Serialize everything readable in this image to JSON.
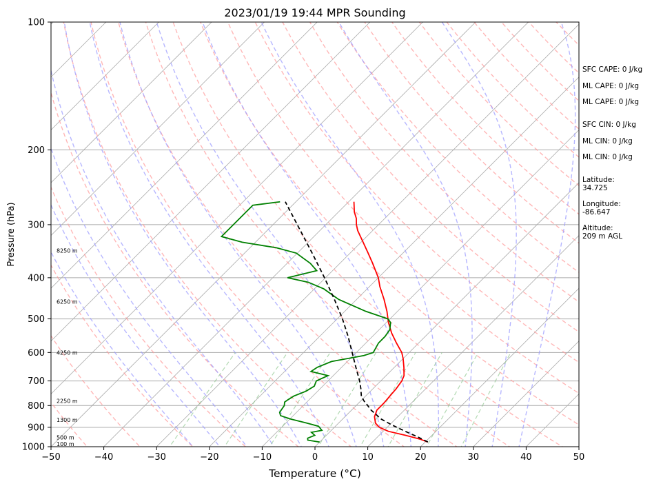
{
  "chart_data": {
    "type": "line",
    "title": "2023/01/19 19:44 MPR Sounding",
    "xlabel": "Temperature (°C)",
    "ylabel": "Pressure (hPa)",
    "xlim": [
      -50,
      50
    ],
    "ylim": [
      1000,
      100
    ],
    "y_scale": "log",
    "skew": "skew-T log-P",
    "grid": true,
    "x_ticks": [
      "−50",
      "−40",
      "−30",
      "−20",
      "−10",
      "0",
      "10",
      "20",
      "30",
      "40",
      "50"
    ],
    "x_tick_values": [
      -50,
      -40,
      -30,
      -20,
      -10,
      0,
      10,
      20,
      30,
      40,
      50
    ],
    "y_ticks": [
      "1000",
      "900",
      "800",
      "700",
      "600",
      "500",
      "400",
      "300",
      "200",
      "100"
    ],
    "y_tick_values": [
      1000,
      900,
      800,
      700,
      600,
      500,
      400,
      300,
      200,
      100
    ],
    "series": [
      {
        "role": "temperature",
        "color": "#ff0000",
        "points": [
          [
            975,
            20.5
          ],
          [
            960,
            18.5
          ],
          [
            940,
            15.0
          ],
          [
            920,
            11.0
          ],
          [
            900,
            8.5
          ],
          [
            880,
            7.0
          ],
          [
            850,
            5.6
          ],
          [
            820,
            4.8
          ],
          [
            790,
            4.8
          ],
          [
            760,
            4.6
          ],
          [
            730,
            4.4
          ],
          [
            700,
            4.0
          ],
          [
            680,
            3.4
          ],
          [
            650,
            1.8
          ],
          [
            620,
            0.0
          ],
          [
            600,
            -1.4
          ],
          [
            570,
            -4.2
          ],
          [
            540,
            -7.0
          ],
          [
            510,
            -9.6
          ],
          [
            480,
            -12.0
          ],
          [
            450,
            -14.8
          ],
          [
            420,
            -18.0
          ],
          [
            400,
            -20.0
          ],
          [
            370,
            -23.8
          ],
          [
            350,
            -26.6
          ],
          [
            330,
            -29.6
          ],
          [
            310,
            -32.8
          ],
          [
            300,
            -34.2
          ],
          [
            290,
            -35.4
          ],
          [
            280,
            -37.0
          ],
          [
            265,
            -39.0
          ]
        ]
      },
      {
        "role": "dewpoint",
        "color": "#008000",
        "points": [
          [
            975,
            0.0
          ],
          [
            965,
            -2.6
          ],
          [
            955,
            -3.0
          ],
          [
            940,
            -2.2
          ],
          [
            925,
            -3.4
          ],
          [
            915,
            -1.8
          ],
          [
            895,
            -3.2
          ],
          [
            880,
            -6.0
          ],
          [
            860,
            -10.0
          ],
          [
            845,
            -12.4
          ],
          [
            830,
            -13.2
          ],
          [
            800,
            -13.6
          ],
          [
            785,
            -14.2
          ],
          [
            775,
            -14.0
          ],
          [
            760,
            -13.6
          ],
          [
            740,
            -12.2
          ],
          [
            720,
            -11.6
          ],
          [
            700,
            -12.2
          ],
          [
            680,
            -11.0
          ],
          [
            665,
            -15.0
          ],
          [
            650,
            -14.6
          ],
          [
            630,
            -13.0
          ],
          [
            610,
            -8.0
          ],
          [
            600,
            -6.8
          ],
          [
            570,
            -7.6
          ],
          [
            550,
            -7.6
          ],
          [
            530,
            -8.0
          ],
          [
            510,
            -9.2
          ],
          [
            500,
            -10.4
          ],
          [
            480,
            -16.0
          ],
          [
            450,
            -23.4
          ],
          [
            425,
            -28.2
          ],
          [
            410,
            -32.4
          ],
          [
            400,
            -37.2
          ],
          [
            385,
            -33.0
          ],
          [
            370,
            -35.6
          ],
          [
            350,
            -40.2
          ],
          [
            340,
            -45.0
          ],
          [
            330,
            -52.5
          ],
          [
            320,
            -57.5
          ],
          [
            270,
            -57.5
          ],
          [
            265,
            -53.0
          ]
        ]
      },
      {
        "role": "parcel",
        "color": "#000000",
        "style": "dashed",
        "points": [
          [
            975,
            20.5
          ],
          [
            950,
            17.8
          ],
          [
            920,
            14.2
          ],
          [
            890,
            10.6
          ],
          [
            860,
            7.2
          ],
          [
            840,
            5.5
          ],
          [
            820,
            3.7
          ],
          [
            800,
            2.2
          ],
          [
            780,
            0.6
          ],
          [
            760,
            -0.8
          ],
          [
            740,
            -1.8
          ],
          [
            730,
            -2.3
          ],
          [
            700,
            -4.0
          ],
          [
            650,
            -7.3
          ],
          [
            600,
            -10.8
          ],
          [
            550,
            -14.6
          ],
          [
            500,
            -19.0
          ],
          [
            450,
            -24.2
          ],
          [
            400,
            -30.2
          ],
          [
            350,
            -37.2
          ],
          [
            300,
            -45.4
          ],
          [
            265,
            -52.0
          ]
        ]
      }
    ],
    "height_labels": [
      "8250 m",
      "6250 m",
      "4250 m",
      "2250 m",
      "1300 m",
      "500 m",
      "100 m"
    ],
    "height_label_pressures": [
      345,
      455,
      600,
      780,
      865,
      950,
      985
    ],
    "dry_adiabat_thetas_K": [
      230,
      250,
      270,
      290,
      310,
      330,
      350,
      370,
      390,
      410,
      430,
      450
    ],
    "moist_adiabat_start_C": [
      -20,
      -15,
      -10,
      -5,
      0,
      5,
      10,
      15,
      20,
      25,
      30,
      35
    ],
    "mixing_ratios_gkg": [
      0.4,
      1,
      2,
      4,
      7,
      10,
      16,
      24
    ],
    "colors": {
      "temperature": "#ff0000",
      "dewpoint": "#008000",
      "parcel": "#000000",
      "dry_adiabats": "#ff9999",
      "moist_adiabats": "#9999ff",
      "mixing_ratio": "#7fbf7f",
      "isotherms": "#aaaaaa",
      "isobars": "#aaaaaa"
    }
  },
  "side_panel": {
    "sfc_cape": "SFC CAPE: 0 J/kg",
    "ml_cape_1": "ML CAPE: 0 J/kg",
    "ml_cape_2": "ML CAPE: 0 J/kg",
    "sfc_cin": "SFC CIN: 0 J/kg",
    "ml_cin_1": "ML CIN: 0 J/kg",
    "ml_cin_2": "ML CIN: 0 J/kg",
    "latitude_label": "Latitude:",
    "latitude_value": "34.725",
    "longitude_label": "Longitude:",
    "longitude_value": "-86.647",
    "altitude_label": "Altitude:",
    "altitude_value": "209 m AGL"
  }
}
